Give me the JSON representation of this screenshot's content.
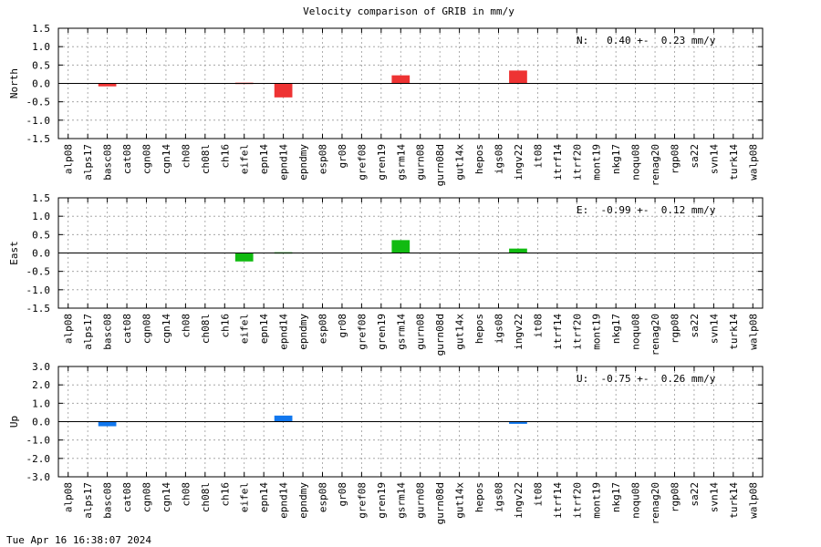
{
  "title": "Velocity comparison of GRIB in mm/y",
  "footer": "Tue Apr 16 16:38:07 2024",
  "chart_data": [
    {
      "type": "bar",
      "ylabel": "North",
      "ylim": [
        -1.5,
        1.5
      ],
      "yticks": [
        "1.5",
        "1.0",
        "0.5",
        "0.0",
        "-0.5",
        "-1.0",
        "-1.5"
      ],
      "color": "#ee3333",
      "annotation": "N:   0.40 +-  0.23 mm/y",
      "categories": [
        "alp08",
        "alps17",
        "basc08",
        "cat08",
        "cgn08",
        "cgn14",
        "ch08",
        "ch08l",
        "ch16",
        "eifel",
        "epn14",
        "epnd14",
        "epndmy",
        "esp08",
        "gr08",
        "gref08",
        "gren19",
        "gsrm14",
        "gurn08",
        "gurn08d",
        "gut14x",
        "hepos",
        "igs08",
        "ingv22",
        "it08",
        "itrf14",
        "itrf20",
        "mont19",
        "nkg17",
        "noqu08",
        "renag20",
        "rgp08",
        "sa22",
        "svn14",
        "turk14",
        "walp08"
      ],
      "values": [
        0,
        0,
        -0.08,
        0,
        0,
        0,
        0,
        0,
        0,
        0.02,
        0,
        -0.38,
        0,
        0,
        0,
        0,
        0,
        0.22,
        0,
        0,
        0,
        0,
        0,
        0.35,
        0,
        0,
        0,
        0,
        0,
        0,
        0,
        0,
        0,
        0,
        0,
        0
      ]
    },
    {
      "type": "bar",
      "ylabel": "East",
      "ylim": [
        -1.5,
        1.5
      ],
      "yticks": [
        "1.5",
        "1.0",
        "0.5",
        "0.0",
        "-0.5",
        "-1.0",
        "-1.5"
      ],
      "color": "#11bb11",
      "annotation": "E:  -0.99 +-  0.12 mm/y",
      "categories": [
        "alp08",
        "alps17",
        "basc08",
        "cat08",
        "cgn08",
        "cgn14",
        "ch08",
        "ch08l",
        "ch16",
        "eifel",
        "epn14",
        "epnd14",
        "epndmy",
        "esp08",
        "gr08",
        "gref08",
        "gren19",
        "gsrm14",
        "gurn08",
        "gurn08d",
        "gut14x",
        "hepos",
        "igs08",
        "ingv22",
        "it08",
        "itrf14",
        "itrf20",
        "mont19",
        "nkg17",
        "noqu08",
        "renag20",
        "rgp08",
        "sa22",
        "svn14",
        "turk14",
        "walp08"
      ],
      "values": [
        0,
        0,
        0,
        0,
        0,
        0,
        0,
        0,
        0,
        -0.23,
        0,
        0.02,
        0,
        0,
        0,
        0,
        0,
        0.35,
        0,
        0,
        0,
        0,
        0,
        0.12,
        0,
        0,
        0,
        0,
        0,
        0,
        0,
        0,
        0,
        0,
        0,
        0
      ]
    },
    {
      "type": "bar",
      "ylabel": "Up",
      "ylim": [
        -3.0,
        3.0
      ],
      "yticks": [
        "3.0",
        "2.0",
        "1.0",
        "0.0",
        "-1.0",
        "-2.0",
        "-3.0"
      ],
      "color": "#1177ee",
      "annotation": "U:  -0.75 +-  0.26 mm/y",
      "categories": [
        "alp08",
        "alps17",
        "basc08",
        "cat08",
        "cgn08",
        "cgn14",
        "ch08",
        "ch08l",
        "ch16",
        "eifel",
        "epn14",
        "epnd14",
        "epndmy",
        "esp08",
        "gr08",
        "gref08",
        "gren19",
        "gsrm14",
        "gurn08",
        "gurn08d",
        "gut14x",
        "hepos",
        "igs08",
        "ingv22",
        "it08",
        "itrf14",
        "itrf20",
        "mont19",
        "nkg17",
        "noqu08",
        "renag20",
        "rgp08",
        "sa22",
        "svn14",
        "turk14",
        "walp08"
      ],
      "values": [
        0,
        0,
        -0.25,
        0,
        0,
        0,
        0,
        0,
        0,
        0,
        0,
        0.33,
        0,
        0,
        0,
        0,
        0,
        0,
        0,
        0,
        0,
        0,
        0,
        -0.12,
        0,
        0,
        0,
        0,
        0,
        0,
        0,
        0,
        0,
        0,
        0,
        0
      ]
    }
  ]
}
